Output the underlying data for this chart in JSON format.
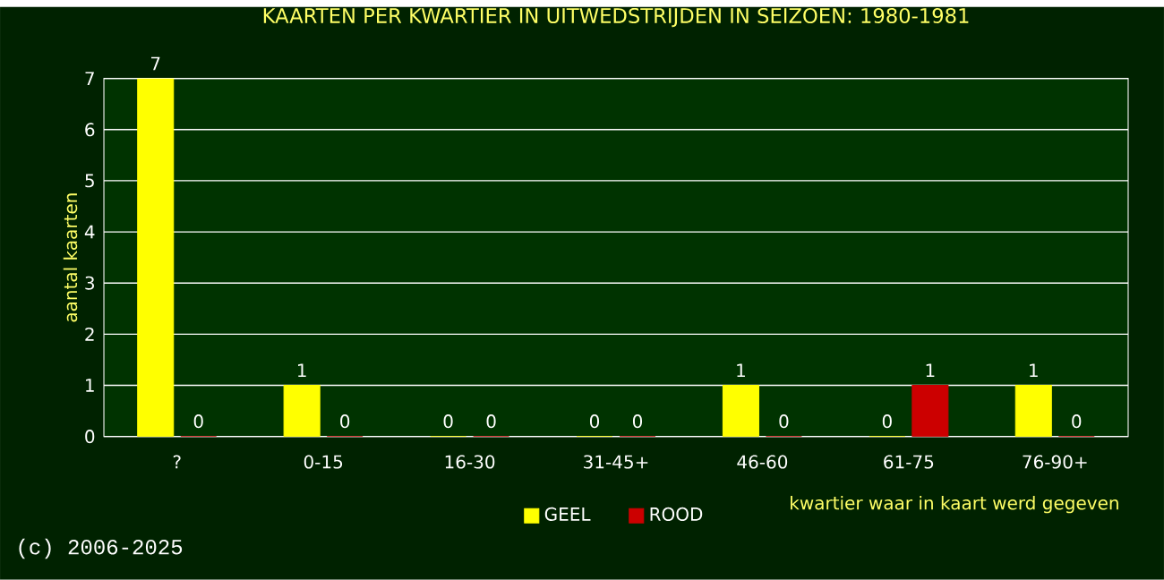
{
  "chart_data": {
    "type": "bar",
    "title": "KAARTEN PER KWARTIER IN UITWEDSTRIJDEN IN SEIZOEN: 1980-1981",
    "xlabel": "kwartier waar in kaart werd gegeven",
    "ylabel": "aantal kaarten",
    "categories": [
      "?",
      "0-15",
      "16-30",
      "31-45+",
      "46-60",
      "61-75",
      "76-90+"
    ],
    "series": [
      {
        "name": "GEEL",
        "color": "#ffff00",
        "values": [
          7,
          1,
          0,
          0,
          1,
          0,
          1
        ]
      },
      {
        "name": "ROOD",
        "color": "#cc0000",
        "values": [
          0,
          0,
          0,
          0,
          0,
          1,
          0
        ]
      }
    ],
    "ylim": [
      0,
      7
    ],
    "yticks": [
      0,
      1,
      2,
      3,
      4,
      5,
      6,
      7
    ],
    "grid": "y",
    "legend": "bottom",
    "data_labels": true,
    "annotations": [
      "(c) 2006-2025"
    ]
  }
}
